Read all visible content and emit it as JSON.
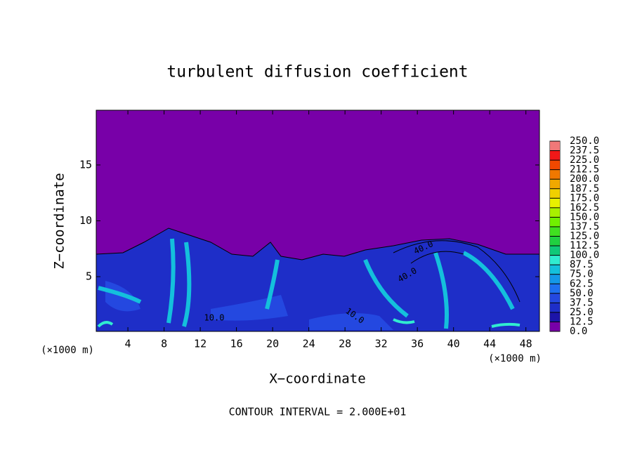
{
  "chart_data": {
    "type": "contour",
    "title": "turbulent diffusion coefficient",
    "xlabel": "X−coordinate",
    "ylabel": "Z−coordinate",
    "x_unit_label_left": "(×1000 m)",
    "x_unit_label_right": "(×1000 m)",
    "footnote": "CONTOUR INTERVAL = 2.000E+01",
    "xlim": [
      0.5,
      49.5
    ],
    "xticks": [
      4,
      8,
      12,
      16,
      20,
      24,
      28,
      32,
      36,
      40,
      44,
      48
    ],
    "ylim": [
      0.1,
      19.9
    ],
    "yticks": [
      5,
      10,
      15
    ],
    "contour_labels": [
      "10.0",
      "40.0",
      "40.0",
      "10.0"
    ],
    "colorbar": {
      "lim": [
        0,
        250
      ],
      "ticks": [
        {
          "value": 0,
          "label": "0.0"
        },
        {
          "value": 12.5,
          "label": "12.5"
        },
        {
          "value": 25,
          "label": "25.0"
        },
        {
          "value": 37.5,
          "label": "37.5"
        },
        {
          "value": 50,
          "label": "50.0"
        },
        {
          "value": 62.5,
          "label": "62.5"
        },
        {
          "value": 75,
          "label": "75.0"
        },
        {
          "value": 87.5,
          "label": "87.5"
        },
        {
          "value": 100,
          "label": "100.0"
        },
        {
          "value": 112.5,
          "label": "112.5"
        },
        {
          "value": 125,
          "label": "125.0"
        },
        {
          "value": 137.5,
          "label": "137.5"
        },
        {
          "value": 150,
          "label": "150.0"
        },
        {
          "value": 162.5,
          "label": "162.5"
        },
        {
          "value": 175,
          "label": "175.0"
        },
        {
          "value": 187.5,
          "label": "187.5"
        },
        {
          "value": 200,
          "label": "200.0"
        },
        {
          "value": 212.5,
          "label": "212.5"
        },
        {
          "value": 225,
          "label": "225.0"
        },
        {
          "value": 237.5,
          "label": "237.5"
        },
        {
          "value": 250,
          "label": "250.0"
        }
      ],
      "colors": [
        "#7800a8",
        "#1c14a8",
        "#1e2ec8",
        "#2448e0",
        "#1e70f0",
        "#1498e8",
        "#14c0dc",
        "#30ecd0",
        "#10c878",
        "#20d040",
        "#40e020",
        "#70f000",
        "#a8f000",
        "#e8f000",
        "#f0d000",
        "#f0a800",
        "#f07800",
        "#f04800",
        "#f01818",
        "#f07878"
      ]
    }
  }
}
